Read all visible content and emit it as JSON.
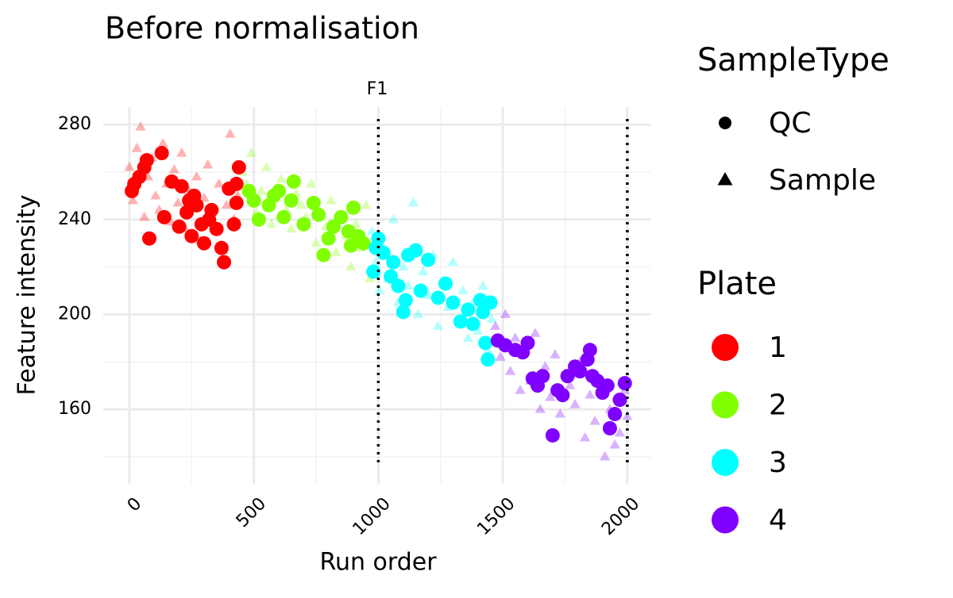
{
  "chart_data": {
    "type": "scatter",
    "title": "Before normalisation",
    "facet_label": "F1",
    "xlabel": "Run order",
    "ylabel": "Feature intensity",
    "xlim": [
      -105,
      2096
    ],
    "ylim": [
      128.6,
      287.4
    ],
    "xticks": [
      0,
      500,
      1000,
      1500,
      2000
    ],
    "yticks": [
      160,
      200,
      240,
      280
    ],
    "x_minor_grid": [
      250,
      750,
      1250,
      1750
    ],
    "y_minor_grid": [
      140,
      180,
      220,
      260
    ],
    "grid": true,
    "vlines": [
      1000,
      2000
    ],
    "shape_legend": {
      "title": "SampleType",
      "items": [
        "QC",
        "Sample"
      ]
    },
    "color_legend_title": "Plate",
    "series": [
      {
        "name": "1",
        "color": "#ff0000",
        "qc": {
          "x": [
            10,
            20,
            40,
            60,
            70,
            80,
            130,
            140,
            170,
            200,
            210,
            230,
            240,
            250,
            260,
            270,
            290,
            300,
            320,
            330,
            350,
            370,
            380,
            400,
            420,
            430,
            440,
            430
          ],
          "y": [
            252,
            255,
            258,
            262,
            265,
            232,
            268,
            241,
            256,
            237,
            254,
            243,
            248,
            233,
            250,
            246,
            238,
            230,
            240,
            244,
            236,
            228,
            222,
            253,
            238,
            247,
            262,
            255
          ]
        },
        "sample": {
          "x": [
            0,
            15,
            30,
            45,
            60,
            75,
            90,
            105,
            120,
            135,
            150,
            165,
            180,
            195,
            210,
            225,
            240,
            255,
            270,
            285,
            300,
            315,
            330,
            345,
            360,
            375,
            390,
            405,
            420,
            435
          ],
          "y": [
            262,
            248,
            270,
            279,
            241,
            258,
            266,
            250,
            244,
            272,
            255,
            239,
            261,
            247,
            268,
            236,
            252,
            245,
            258,
            231,
            249,
            263,
            241,
            238,
            255,
            227,
            246,
            276,
            240,
            250
          ]
        }
      },
      {
        "name": "2",
        "color": "#80ff00",
        "qc": {
          "x": [
            480,
            500,
            520,
            560,
            580,
            600,
            620,
            650,
            660,
            700,
            740,
            760,
            780,
            800,
            820,
            850,
            880,
            890,
            900,
            920,
            940
          ],
          "y": [
            252,
            248,
            240,
            246,
            250,
            252,
            241,
            248,
            256,
            238,
            247,
            242,
            225,
            232,
            237,
            241,
            235,
            229,
            245,
            233,
            230
          ]
        },
        "sample": {
          "x": [
            455,
            470,
            490,
            510,
            530,
            550,
            570,
            590,
            610,
            630,
            650,
            670,
            690,
            710,
            730,
            750,
            770,
            790,
            810,
            830,
            850,
            870,
            890,
            910,
            930,
            950,
            965
          ],
          "y": [
            260,
            255,
            268,
            243,
            252,
            262,
            238,
            249,
            257,
            244,
            236,
            251,
            246,
            241,
            255,
            230,
            242,
            237,
            248,
            226,
            240,
            233,
            220,
            238,
            228,
            246,
            215
          ]
        }
      },
      {
        "name": "3",
        "color": "#00ffff",
        "qc": {
          "x": [
            980,
            990,
            1000,
            1020,
            1050,
            1060,
            1080,
            1100,
            1110,
            1120,
            1150,
            1170,
            1200,
            1240,
            1270,
            1300,
            1330,
            1360,
            1380,
            1410,
            1420,
            1430,
            1440,
            1450
          ],
          "y": [
            218,
            228,
            232,
            226,
            216,
            222,
            212,
            201,
            206,
            225,
            227,
            210,
            223,
            207,
            213,
            205,
            197,
            202,
            196,
            206,
            201,
            188,
            181,
            205
          ]
        },
        "sample": {
          "x": [
            975,
            990,
            1005,
            1020,
            1040,
            1060,
            1080,
            1100,
            1120,
            1140,
            1160,
            1180,
            1200,
            1220,
            1240,
            1260,
            1280,
            1300,
            1320,
            1340,
            1360,
            1380,
            1400,
            1420,
            1440,
            1455
          ],
          "y": [
            235,
            222,
            210,
            228,
            215,
            240,
            205,
            220,
            212,
            247,
            200,
            218,
            208,
            225,
            195,
            214,
            203,
            222,
            198,
            210,
            190,
            205,
            193,
            212,
            185,
            198
          ]
        }
      },
      {
        "name": "4",
        "color": "#8000ff",
        "qc": {
          "x": [
            1480,
            1510,
            1550,
            1580,
            1600,
            1620,
            1640,
            1660,
            1700,
            1720,
            1740,
            1760,
            1790,
            1810,
            1840,
            1850,
            1860,
            1880,
            1900,
            1920,
            1930,
            1950,
            1970,
            1990
          ],
          "y": [
            189,
            187,
            185,
            184,
            188,
            173,
            170,
            174,
            149,
            168,
            166,
            174,
            178,
            176,
            181,
            185,
            174,
            172,
            167,
            170,
            152,
            158,
            164,
            171
          ]
        },
        "sample": {
          "x": [
            1470,
            1490,
            1510,
            1530,
            1550,
            1570,
            1590,
            1610,
            1630,
            1650,
            1670,
            1690,
            1710,
            1730,
            1750,
            1770,
            1790,
            1810,
            1830,
            1850,
            1870,
            1890,
            1910,
            1930,
            1950,
            1970,
            1990,
            2000
          ],
          "y": [
            195,
            182,
            200,
            176,
            190,
            168,
            185,
            172,
            192,
            160,
            178,
            165,
            183,
            158,
            175,
            170,
            162,
            180,
            148,
            166,
            155,
            172,
            140,
            160,
            145,
            150,
            168,
            157
          ]
        }
      }
    ]
  }
}
